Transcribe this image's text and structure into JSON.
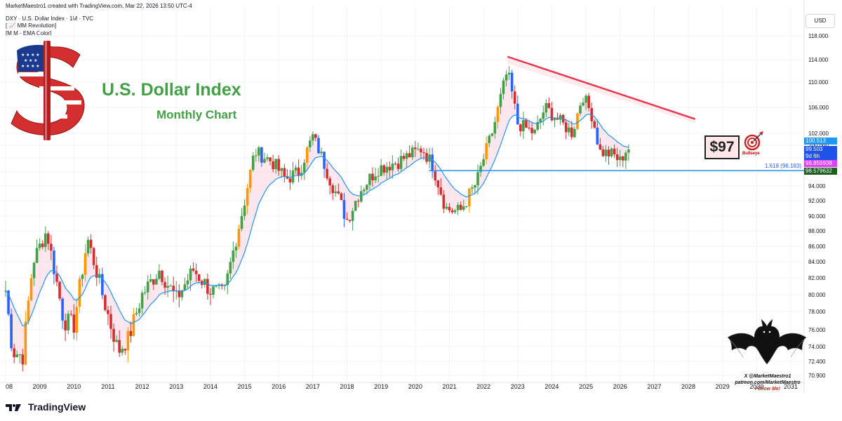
{
  "header": {
    "title": "MarketMaestro1 created with TradingView.com, Mar 22, 2026 13:50 UTC-4",
    "symbol_line": "DXY · U.S. Dollar Index · 1M · TVC",
    "indicator_1": "[ 📈 MM Revolution]",
    "indicator_2": "[M M - EMA Color]"
  },
  "currency": "USD",
  "annotations": {
    "title": "U.S. Dollar Index",
    "subtitle": "Monthly Chart",
    "target": "$97",
    "bullseye": "Bullseye",
    "fib_label": "1.618 (96.183)",
    "credit_line1": "X @MarketMaestro1",
    "credit_line2": "patreon.com/MarketMaestro",
    "credit_line3": "Follow Me!"
  },
  "price_labels": [
    {
      "text": "100.513",
      "color": "#2196f3"
    },
    {
      "text": "99.503",
      "color": "#1e53e5"
    },
    {
      "text": "9d 6h",
      "color": "#1e53e5"
    },
    {
      "text": "98.859938",
      "color": "#e040fb"
    },
    {
      "text": "98.579632",
      "color": "#1b5e20"
    }
  ],
  "logo": {
    "text": "TradingView"
  },
  "colors": {
    "bull": "#43a047",
    "bear": "#d32f2f",
    "impulse_bull": "#ff9800",
    "impulse_bear": "#2962ff",
    "ema": "#2196f3",
    "trendline": "#e53950",
    "support": "#2196f3"
  },
  "chart_data": {
    "type": "candlestick",
    "title": "U.S. Dollar Index",
    "subtitle": "Monthly Chart",
    "symbol": "DXY",
    "timeframe": "1M",
    "x_ticks": [
      "08",
      "2009",
      "2010",
      "2011",
      "2012",
      "2013",
      "2014",
      "2015",
      "2016",
      "2017",
      "2018",
      "2019",
      "2020",
      "2021",
      "2022",
      "2023",
      "2024",
      "2025",
      "2026",
      "2027",
      "2028",
      "2029",
      "2030",
      "2031"
    ],
    "y_ticks": [
      70.9,
      72.4,
      74,
      76,
      78,
      80,
      82,
      84,
      86,
      88,
      90,
      92,
      94,
      96,
      98,
      100,
      102,
      106,
      110,
      114,
      118
    ],
    "y_tick_labels": [
      "70.900",
      "72.400",
      "74.000",
      "76.000",
      "78.000",
      "80.000",
      "82.000",
      "84.000",
      "86.000",
      "88.000",
      "90.000",
      "92.000",
      "94.000",
      "96.000",
      "98.000",
      "100.000",
      "102.000",
      "106.000",
      "110.000",
      "114.000",
      "118.000"
    ],
    "ylim": [
      70.5,
      121
    ],
    "xlim": [
      2008.0,
      2031.5
    ],
    "series_yearly_path": [
      {
        "t": 2008.0,
        "v": 80.5
      },
      {
        "t": 2008.2,
        "v": 73.5
      },
      {
        "t": 2008.5,
        "v": 73.0
      },
      {
        "t": 2008.8,
        "v": 84.0
      },
      {
        "t": 2009.2,
        "v": 88.0
      },
      {
        "t": 2009.7,
        "v": 77.0
      },
      {
        "t": 2010.0,
        "v": 76.5
      },
      {
        "t": 2010.4,
        "v": 87.0
      },
      {
        "t": 2010.9,
        "v": 79.0
      },
      {
        "t": 2011.3,
        "v": 73.5
      },
      {
        "t": 2011.6,
        "v": 75.0
      },
      {
        "t": 2012.0,
        "v": 80.0
      },
      {
        "t": 2012.5,
        "v": 83.0
      },
      {
        "t": 2013.0,
        "v": 79.5
      },
      {
        "t": 2013.5,
        "v": 83.0
      },
      {
        "t": 2014.0,
        "v": 80.5
      },
      {
        "t": 2014.4,
        "v": 80.0
      },
      {
        "t": 2015.0,
        "v": 92.0
      },
      {
        "t": 2015.3,
        "v": 99.0
      },
      {
        "t": 2015.8,
        "v": 97.5
      },
      {
        "t": 2016.2,
        "v": 95.0
      },
      {
        "t": 2016.6,
        "v": 96.0
      },
      {
        "t": 2017.0,
        "v": 101.5
      },
      {
        "t": 2017.5,
        "v": 95.0
      },
      {
        "t": 2018.0,
        "v": 89.5
      },
      {
        "t": 2018.4,
        "v": 93.5
      },
      {
        "t": 2018.9,
        "v": 96.5
      },
      {
        "t": 2019.5,
        "v": 97.5
      },
      {
        "t": 2020.2,
        "v": 99.5
      },
      {
        "t": 2020.5,
        "v": 97.0
      },
      {
        "t": 2020.9,
        "v": 91.0
      },
      {
        "t": 2021.3,
        "v": 90.5
      },
      {
        "t": 2021.8,
        "v": 94.5
      },
      {
        "t": 2022.3,
        "v": 103.0
      },
      {
        "t": 2022.7,
        "v": 112.0
      },
      {
        "t": 2023.0,
        "v": 103.5
      },
      {
        "t": 2023.5,
        "v": 102.0
      },
      {
        "t": 2023.8,
        "v": 106.0
      },
      {
        "t": 2024.2,
        "v": 104.0
      },
      {
        "t": 2024.6,
        "v": 102.0
      },
      {
        "t": 2024.9,
        "v": 108.0
      },
      {
        "t": 2025.2,
        "v": 104.5
      },
      {
        "t": 2025.4,
        "v": 99.0
      },
      {
        "t": 2025.8,
        "v": 98.5
      },
      {
        "t": 2026.0,
        "v": 97.5
      },
      {
        "t": 2026.2,
        "v": 99.5
      }
    ],
    "trendline": {
      "start": {
        "t": 2022.7,
        "v": 114.5
      },
      "end": {
        "t": 2028.2,
        "v": 104.2
      }
    },
    "support_level": 96.183,
    "support_start": 2020.4,
    "last_price": 99.503,
    "ema_value": 100.513,
    "ema_value_2": 98.859938,
    "ema_value_3": 98.579632
  }
}
